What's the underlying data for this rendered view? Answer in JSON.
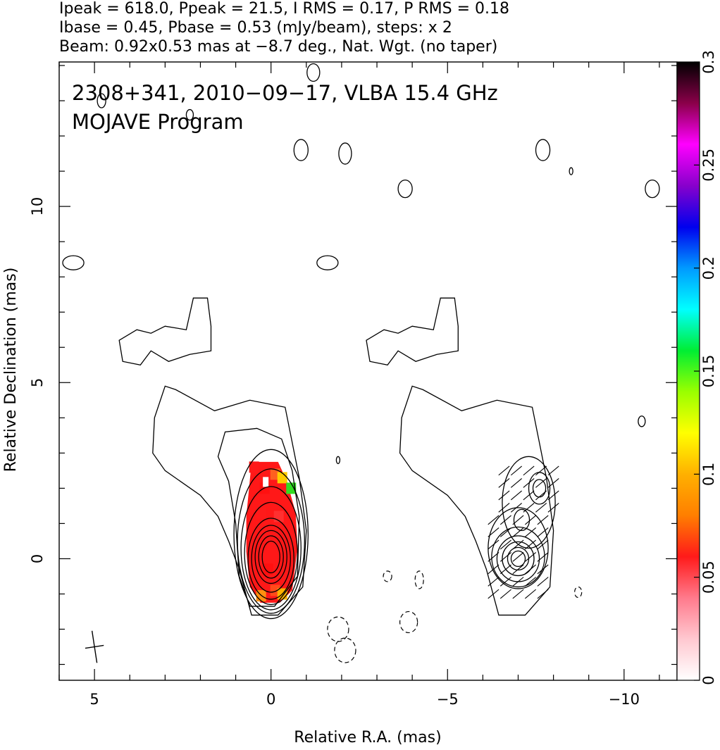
{
  "chart_data": {
    "type": "contour",
    "header_lines": [
      "Ipeak = 618.0, Ppeak = 21.5, I RMS = 0.17, P RMS = 0.18",
      "Ibase = 0.45, Pbase = 0.53 (mJy/beam), steps: x 2",
      "Beam: 0.92x0.53 mas at −8.7 deg., Nat. Wgt. (no taper)"
    ],
    "annotation_lines": [
      "2308+341, 2010−09−17, VLBA 15.4 GHz",
      "MOJAVE Program"
    ],
    "xlabel": "Relative R.A. (mas)",
    "ylabel": "Relative Declination (mas)",
    "xlim": [
      6.0,
      -11.5
    ],
    "ylim": [
      -3.45,
      14.1
    ],
    "x_ticks": [
      {
        "value": 5,
        "label": "5"
      },
      {
        "value": 0,
        "label": "0"
      },
      {
        "value": -5,
        "label": "−5"
      },
      {
        "value": -10,
        "label": "−10"
      }
    ],
    "y_ticks": [
      {
        "value": 0,
        "label": "0"
      },
      {
        "value": 5,
        "label": "5"
      },
      {
        "value": 10,
        "label": "10"
      }
    ],
    "colorbar": {
      "range": [
        0,
        0.3
      ],
      "ticks": [
        {
          "value": 0,
          "label": "0"
        },
        {
          "value": 0.05,
          "label": "0.05"
        },
        {
          "value": 0.1,
          "label": "0.1"
        },
        {
          "value": 0.15,
          "label": "0.15"
        },
        {
          "value": 0.2,
          "label": "0.2"
        },
        {
          "value": 0.25,
          "label": "0.25"
        },
        {
          "value": 0.3,
          "label": "0.3"
        }
      ],
      "colors": [
        "#ffffff",
        "#ffc8d0",
        "#ff7a8c",
        "#ff1a1a",
        "#ff7f00",
        "#ffb000",
        "#ffff00",
        "#99ff00",
        "#00ee33",
        "#00ffff",
        "#0099ff",
        "#0000ee",
        "#8800cc",
        "#ff00ff",
        "#8b004a",
        "#000000"
      ]
    },
    "core_position": [
      0,
      0
    ],
    "panel_offset_ra": -7.0,
    "beam": {
      "major_mas": 0.92,
      "minor_mas": 0.53,
      "pa_deg": -8.7,
      "center": [
        5.0,
        -2.5
      ]
    }
  }
}
